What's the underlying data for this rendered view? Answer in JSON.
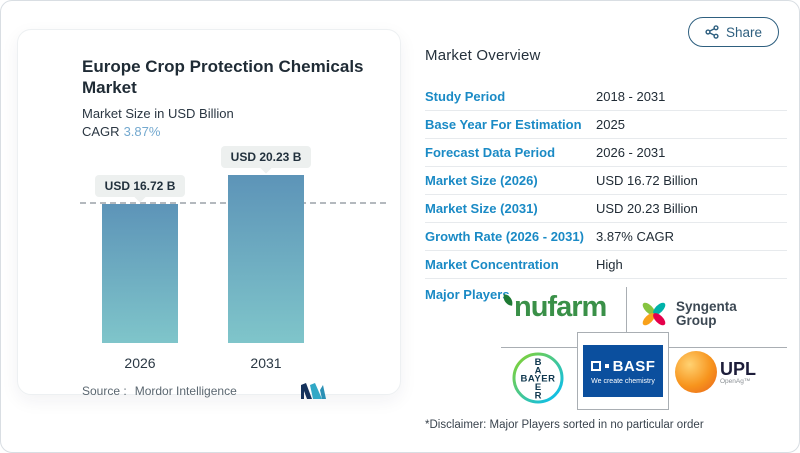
{
  "share": {
    "label": "Share"
  },
  "chart_card": {
    "title": "Europe Crop Protection Chemicals Market",
    "subtitle": "Market Size in USD Billion",
    "cagr_label": "CAGR",
    "cagr_value": "3.87%",
    "source_label": "Source :",
    "source_value": "Mordor Intelligence"
  },
  "chart_data": {
    "type": "bar",
    "title": "Europe Crop Protection Chemicals Market",
    "ylabel": "Market Size in USD Billion",
    "categories": [
      "2026",
      "2031"
    ],
    "values": [
      16.72,
      20.23
    ],
    "bar_labels": [
      "USD 16.72 B",
      "USD 20.23 B"
    ],
    "ylim": [
      0,
      20.23
    ],
    "grid": false,
    "annotations": [
      "horizontal dashed reference line at 16.72"
    ],
    "bar_color_top": "#5d94b8",
    "bar_color_bottom": "#7fc5ca"
  },
  "overview": {
    "heading": "Market Overview",
    "rows": [
      {
        "label": "Study Period",
        "value": "2018 - 2031"
      },
      {
        "label": "Base Year For Estimation",
        "value": "2025"
      },
      {
        "label": "Forecast Data Period",
        "value": "2026 - 2031"
      },
      {
        "label": "Market Size (2026)",
        "value": "USD 16.72 Billion"
      },
      {
        "label": "Market Size (2031)",
        "value": "USD 20.23 Billion"
      },
      {
        "label": "Growth Rate (2026 - 2031)",
        "value": "3.87% CAGR"
      },
      {
        "label": "Market Concentration",
        "value": "High"
      }
    ],
    "major_players_label": "Major Players",
    "players": {
      "names": [
        "nufarm",
        "Syngenta Group",
        "Bayer",
        "BASF",
        "UPL"
      ],
      "nufarm": {
        "name": "nufarm"
      },
      "syngenta": {
        "line1": "Syngenta",
        "line2": "Group"
      },
      "bayer": {
        "name": "BAYER"
      },
      "basf": {
        "name": "BASF",
        "tagline": "We create chemistry"
      },
      "upl": {
        "name": "UPL",
        "sub": "OpenAg™"
      }
    },
    "disclaimer": "*Disclaimer: Major Players sorted in no particular order"
  },
  "colors": {
    "accent_blue": "#1a8ac5",
    "cagr_value_blue": "#74a9cf",
    "share_outline": "#2e5f7f",
    "nufarm_green": "#3a9048",
    "basf_blue": "#0b4f9e",
    "upl_orange": "#f7941d",
    "mordor_navy": "#16325c",
    "mordor_teal": "#31a8c6"
  }
}
